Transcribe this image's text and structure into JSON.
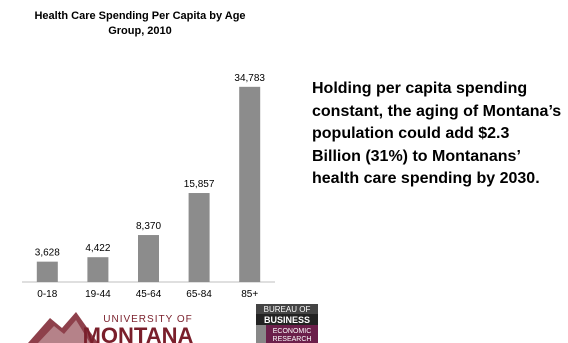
{
  "chart_data": {
    "type": "bar",
    "title": "Health Care Spending Per Capita by Age Group, 2010",
    "categories": [
      "0-18",
      "19-44",
      "45-64",
      "65-84",
      "85+"
    ],
    "values": [
      3628,
      4422,
      8370,
      15857,
      34783
    ],
    "value_labels": [
      "3,628",
      "4,422",
      "8,370",
      "15,857",
      "34,783"
    ],
    "ylim": [
      0,
      36000
    ],
    "grid": false,
    "legend": "none",
    "bar_color": "#8c8c8c"
  },
  "callout": {
    "text": "Holding per capita spending constant, the aging of Montana’s population could add $2.3 Billion (31%) to Montanans’ health care spending by 2030."
  },
  "logos": {
    "university": {
      "line1": "UNIVERSITY OF",
      "line2": "MONTANA",
      "color": "#7a1f2b"
    },
    "bureau": {
      "line1": "BUREAU OF",
      "line2": "BUSINESS",
      "line3": "ECONOMIC",
      "line4": "RESEARCH",
      "color": "#6b1f4a"
    }
  }
}
